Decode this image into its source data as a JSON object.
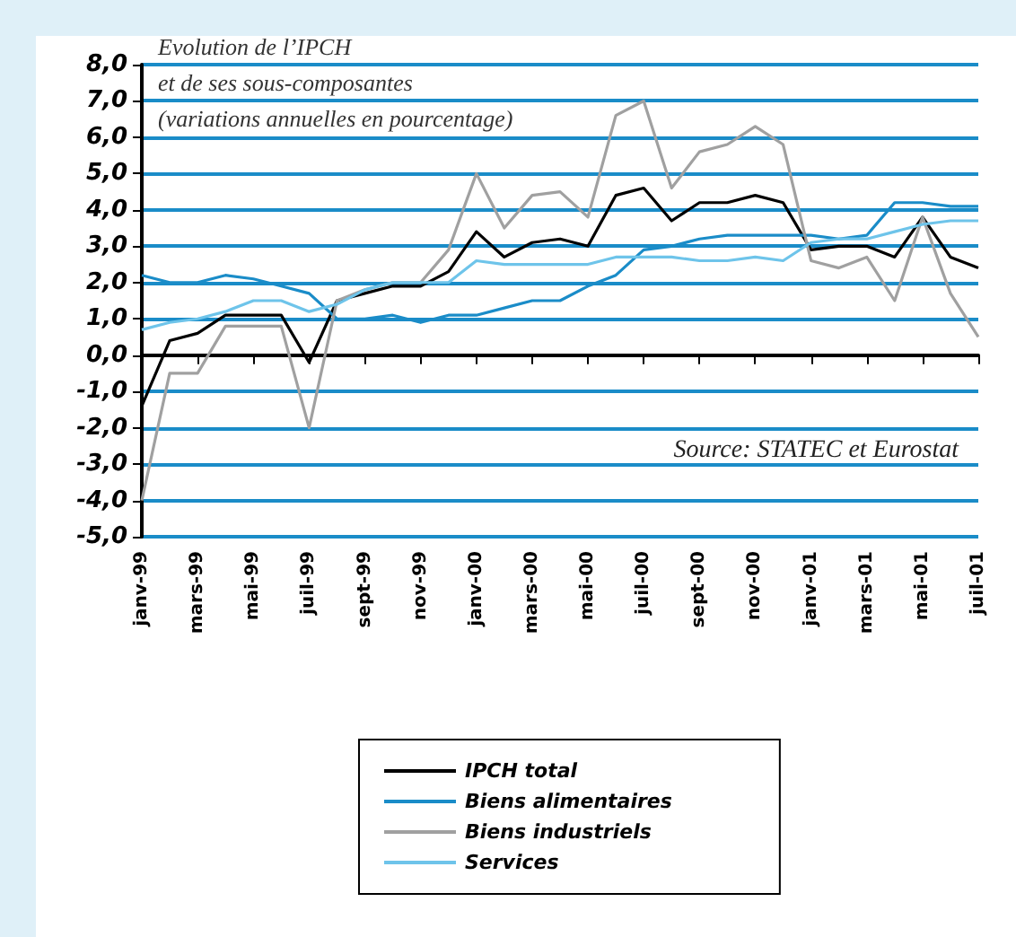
{
  "chart_data": {
    "type": "line",
    "title": "Evolution de l’IPCH",
    "subtitle": "et de ses sous-composantes\n(variations annuelles en pourcentage)",
    "categories": [
      "janv-99",
      null,
      "mars-99",
      null,
      "mai-99",
      null,
      "juil-99",
      null,
      "sept-99",
      null,
      "nov-99",
      null,
      "janv-00",
      null,
      "mars-00",
      null,
      "mai-00",
      null,
      "juil-00",
      null,
      "sept-00",
      null,
      "nov-00",
      null,
      "janv-01",
      null,
      "mars-01",
      null,
      "mai-01",
      null,
      "juil-01"
    ],
    "series": [
      {
        "name": "IPCH total",
        "color": "#000000",
        "values": [
          -1.4,
          0.4,
          0.6,
          1.1,
          1.1,
          1.1,
          -0.2,
          1.5,
          1.7,
          1.9,
          1.9,
          2.3,
          3.4,
          2.7,
          3.1,
          3.2,
          3.0,
          4.4,
          4.6,
          3.7,
          4.2,
          4.2,
          4.4,
          4.2,
          2.9,
          3.0,
          3.0,
          2.7,
          3.8,
          2.7,
          2.4
        ]
      },
      {
        "name": "Biens alimentaires",
        "color": "#1a8cc8",
        "values": [
          2.2,
          2.0,
          2.0,
          2.2,
          2.1,
          1.9,
          1.7,
          1.0,
          1.0,
          1.1,
          0.9,
          1.1,
          1.1,
          1.3,
          1.5,
          1.5,
          1.9,
          2.2,
          2.9,
          3.0,
          3.2,
          3.3,
          3.3,
          3.3,
          3.3,
          3.2,
          3.3,
          4.2,
          4.2,
          4.1,
          4.1
        ]
      },
      {
        "name": "Biens industriels",
        "color": "#a0a0a0",
        "values": [
          -4.0,
          -0.5,
          -0.5,
          0.8,
          0.8,
          0.8,
          -2.0,
          1.5,
          1.8,
          2.0,
          2.0,
          2.9,
          5.0,
          3.5,
          4.4,
          4.5,
          3.8,
          6.6,
          7.0,
          4.6,
          5.6,
          5.8,
          6.3,
          5.8,
          2.6,
          2.4,
          2.7,
          1.5,
          3.8,
          1.7,
          0.5
        ]
      },
      {
        "name": "Services",
        "color": "#6ec4ea",
        "values": [
          0.7,
          0.9,
          1.0,
          1.2,
          1.5,
          1.5,
          1.2,
          1.4,
          1.8,
          2.0,
          2.0,
          2.0,
          2.6,
          2.5,
          2.5,
          2.5,
          2.5,
          2.7,
          2.7,
          2.7,
          2.6,
          2.6,
          2.7,
          2.6,
          3.1,
          3.2,
          3.2,
          3.4,
          3.6,
          3.7,
          3.7
        ]
      }
    ],
    "ylim": [
      -5,
      8
    ],
    "yticks": [
      {
        "value": -5,
        "label": "-5,0"
      },
      {
        "value": -4,
        "label": "-4,0"
      },
      {
        "value": -3,
        "label": "-3,0"
      },
      {
        "value": -2,
        "label": "-2,0"
      },
      {
        "value": -1,
        "label": "-1,0"
      },
      {
        "value": 0,
        "label": "0,0"
      },
      {
        "value": 1,
        "label": "1,0"
      },
      {
        "value": 2,
        "label": "2,0"
      },
      {
        "value": 3,
        "label": "3,0"
      },
      {
        "value": 4,
        "label": "4,0"
      },
      {
        "value": 5,
        "label": "5,0"
      },
      {
        "value": 6,
        "label": "6,0"
      },
      {
        "value": 7,
        "label": "7,0"
      },
      {
        "value": 8,
        "label": "8,0"
      }
    ],
    "grid": "y",
    "legend": "bottom",
    "marker": "none",
    "line_style": "solid",
    "annotations": [
      "Source: STATEC et Eurostat"
    ]
  }
}
